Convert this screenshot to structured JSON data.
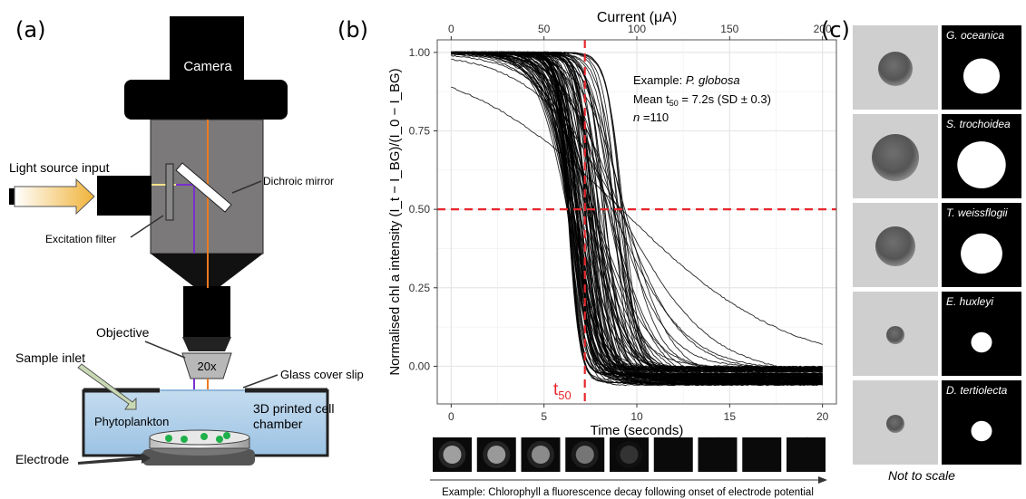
{
  "panels": {
    "a": {
      "letter": "(a)",
      "labels": {
        "camera": "Camera",
        "light_source": "Light source input",
        "dichroic": "Dichroic mirror",
        "excitation": "Excitation filter",
        "objective": "Objective",
        "magnification": "20x",
        "sample_inlet": "Sample inlet",
        "cover_slip": "Glass cover slip",
        "chamber_1": "3D printed cell",
        "chamber_2": "chamber",
        "phytoplankton": "Phytoplankton",
        "electrode": "Electrode"
      }
    },
    "b": {
      "letter": "(b)",
      "annotation": {
        "line1_prefix": "Example: ",
        "line1_species": "P. globosa",
        "line2_prefix": "Mean t",
        "line2_sub": "50",
        "line2_suffix": " = 7.2s (SD ± 0.3)",
        "line3_n": "n",
        "line3_suffix": " =110"
      },
      "t50_label": "t",
      "t50_sub": "50",
      "caption": "Example: Chlorophyll a fluorescence decay following onset of electrode potential",
      "colors": {
        "threshold": "#e8262b",
        "curves": "#000000",
        "grid": "#e6e6e6"
      }
    },
    "c": {
      "letter": "(c)",
      "species": [
        "G. oceanica",
        "S. trochoidea",
        "T. weissflogii",
        "E. huxleyi",
        "D. tertiolecta"
      ],
      "footer": "Not to scale"
    }
  },
  "chart_data": {
    "type": "line",
    "top_axis_label": "Current (μA)",
    "top_ticks": [
      0,
      50,
      100,
      150,
      200
    ],
    "xlabel": "Time (seconds)",
    "ylabel": "Normalised chl a intensity (I_t − I_BG)/(I_0 − I_BG)",
    "x_ticks": [
      0,
      5,
      10,
      15,
      20
    ],
    "y_ticks": [
      "0.00",
      "0.25",
      "0.50",
      "0.75",
      "1.00"
    ],
    "xlim": [
      -0.75,
      20.75
    ],
    "ylim": [
      -0.12,
      1.04
    ],
    "threshold_x": 7.2,
    "threshold_y": 0.5,
    "n_curves": 110,
    "curve_t50_range": [
      6.3,
      9.5
    ],
    "final_level_range": [
      -0.06,
      0.0
    ],
    "grid": true
  }
}
